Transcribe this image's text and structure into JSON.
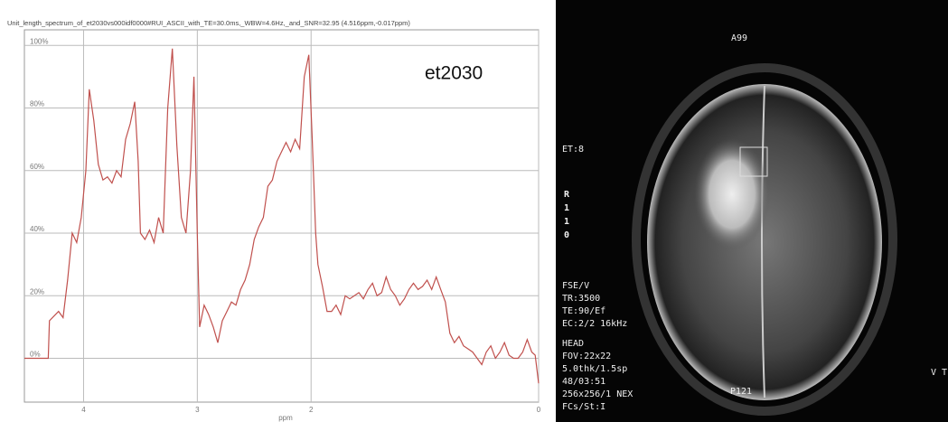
{
  "chart_data": {
    "type": "line",
    "title": "Unit_length_spectrum_of_et2030vs000idf0000#RUI_ASCII_with_TE=30.0ms,_WBW=4.6Hz,_and_SNR=32.95 (4.516ppm,-0.017ppm)",
    "annotation": "et2030",
    "x_label": "ppm",
    "color": "#c0504d",
    "grid": true,
    "xlim": [
      4.52,
      0
    ],
    "xticks": [
      4,
      3,
      2,
      0
    ],
    "ylim": [
      -14,
      105
    ],
    "yticks": [
      {
        "value": 0,
        "label": "0%"
      },
      {
        "value": 20,
        "label": "20%"
      },
      {
        "value": 40,
        "label": "40%"
      },
      {
        "value": 60,
        "label": "60%"
      },
      {
        "value": 80,
        "label": "80%"
      },
      {
        "value": 100,
        "label": "100%"
      }
    ],
    "x": [
      4.52,
      4.31,
      4.3,
      4.22,
      4.18,
      4.14,
      4.1,
      4.06,
      4.02,
      3.98,
      3.95,
      3.91,
      3.87,
      3.83,
      3.79,
      3.75,
      3.71,
      3.67,
      3.63,
      3.59,
      3.55,
      3.52,
      3.5,
      3.46,
      3.42,
      3.38,
      3.34,
      3.3,
      3.26,
      3.22,
      3.18,
      3.14,
      3.1,
      3.06,
      3.03,
      3.0,
      2.98,
      2.94,
      2.9,
      2.86,
      2.82,
      2.78,
      2.74,
      2.7,
      2.66,
      2.62,
      2.58,
      2.54,
      2.5,
      2.46,
      2.42,
      2.38,
      2.34,
      2.3,
      2.26,
      2.22,
      2.18,
      2.14,
      2.1,
      2.06,
      2.02,
      1.99,
      1.96,
      1.94,
      1.9,
      1.86,
      1.82,
      1.78,
      1.74,
      1.7,
      1.66,
      1.62,
      1.58,
      1.54,
      1.5,
      1.46,
      1.42,
      1.38,
      1.34,
      1.3,
      1.26,
      1.22,
      1.18,
      1.14,
      1.1,
      1.06,
      1.02,
      0.98,
      0.94,
      0.9,
      0.86,
      0.82,
      0.78,
      0.74,
      0.7,
      0.66,
      0.62,
      0.58,
      0.54,
      0.5,
      0.46,
      0.42,
      0.38,
      0.34,
      0.3,
      0.26,
      0.22,
      0.18,
      0.14,
      0.1,
      0.06,
      0.03,
      0
    ],
    "values": [
      0,
      0,
      12,
      15,
      13,
      25,
      40,
      37,
      45,
      60,
      86,
      76,
      62,
      57,
      58,
      56,
      60,
      58,
      70,
      75,
      82,
      63,
      40,
      38,
      41,
      37,
      45,
      40,
      80,
      99,
      68,
      45,
      40,
      60,
      90,
      40,
      10,
      17,
      14,
      10,
      5,
      12,
      15,
      18,
      17,
      22,
      25,
      30,
      38,
      42,
      45,
      55,
      57,
      63,
      66,
      69,
      66,
      70,
      67,
      90,
      97,
      70,
      40,
      30,
      23,
      15,
      15,
      17,
      14,
      20,
      19,
      20,
      21,
      19,
      22,
      24,
      20,
      21,
      26,
      22,
      20,
      17,
      19,
      22,
      24,
      22,
      23,
      25,
      22,
      26,
      22,
      18,
      8,
      5,
      7,
      4,
      3,
      2,
      0,
      -2,
      2,
      4,
      0,
      2,
      5,
      1,
      0,
      0,
      2,
      6,
      2,
      1,
      -8
    ]
  },
  "image": {
    "top": "A99",
    "left_top": "ET:8",
    "side": [
      "R",
      "1",
      "1",
      "0"
    ],
    "params": [
      "FSE/V",
      "TR:3500",
      "TE:90/Ef",
      "EC:2/2 16kHz",
      "HEAD",
      "FOV:22x22",
      "5.0thk/1.5sp",
      "48/03:51",
      "256x256/1 NEX",
      "FCs/St:I"
    ],
    "bottom": "P121",
    "right": "V T"
  }
}
